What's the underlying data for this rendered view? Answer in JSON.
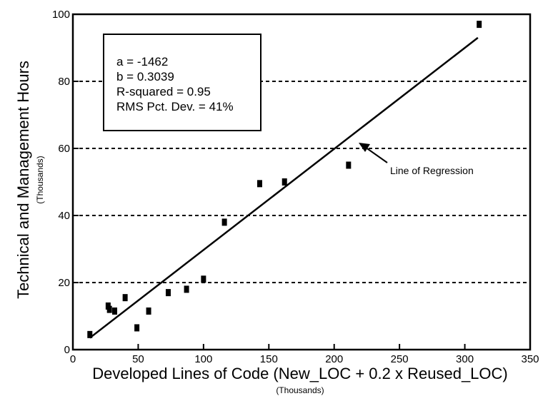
{
  "chart_data": {
    "type": "scatter",
    "xlabel": "Developed Lines of Code  (New_LOC +  0.2 x Reused_LOC)",
    "xlabel_units": "(Thousands)",
    "ylabel": "Technical and Management Hours",
    "ylabel_units": "(Thousands)",
    "xlim": [
      0,
      350
    ],
    "ylim": [
      0,
      100
    ],
    "x_ticks": [
      "0",
      "50",
      "100",
      "150",
      "200",
      "250",
      "300",
      "350"
    ],
    "y_ticks": [
      "0",
      "20",
      "40",
      "60",
      "80",
      "100"
    ],
    "grid": "horizontal dashed",
    "points": [
      {
        "x": 13,
        "y": 4.5
      },
      {
        "x": 27,
        "y": 13
      },
      {
        "x": 28,
        "y": 12
      },
      {
        "x": 32,
        "y": 11.5
      },
      {
        "x": 40,
        "y": 15.5
      },
      {
        "x": 49,
        "y": 6.5
      },
      {
        "x": 58,
        "y": 11.5
      },
      {
        "x": 73,
        "y": 17
      },
      {
        "x": 87,
        "y": 18
      },
      {
        "x": 100,
        "y": 21
      },
      {
        "x": 116,
        "y": 38
      },
      {
        "x": 143,
        "y": 49.5
      },
      {
        "x": 162,
        "y": 50
      },
      {
        "x": 211,
        "y": 55
      },
      {
        "x": 311,
        "y": 97
      }
    ],
    "regression": {
      "from": {
        "x": 13,
        "y": 3.5
      },
      "to": {
        "x": 310,
        "y": 93
      }
    },
    "stats": [
      "a = -1462",
      "b = 0.3039",
      "R-squared = 0.95",
      "RMS Pct. Dev. = 41%"
    ],
    "annotation": {
      "text": "Line of Regression",
      "target": {
        "x": 200,
        "y": 63
      }
    }
  }
}
